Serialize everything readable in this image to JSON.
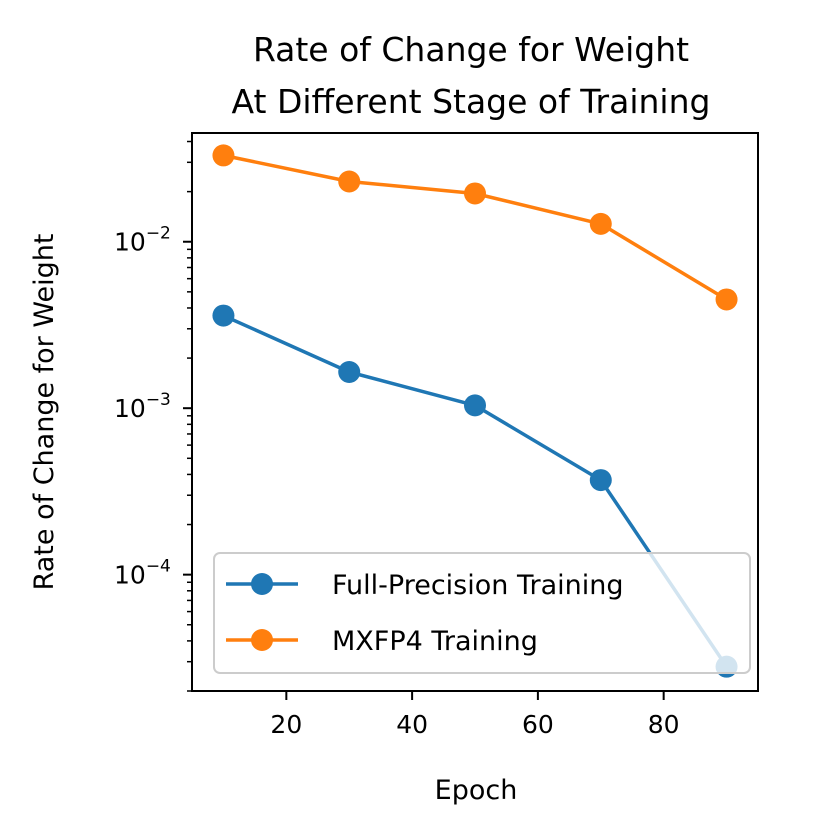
{
  "chart_data": {
    "type": "line",
    "title_lines": [
      "Rate of Change for Weight",
      "At Different Stage of Training"
    ],
    "xlabel": "Epoch",
    "ylabel": "Rate of Change for Weight",
    "yscale": "log",
    "xlim": [
      5,
      95
    ],
    "ylim": [
      2e-05,
      0.045
    ],
    "x_ticks": [
      20,
      40,
      60,
      80
    ],
    "y_ticks": [
      {
        "value": 0.0001,
        "base": "10",
        "exp": "−4"
      },
      {
        "value": 0.001,
        "base": "10",
        "exp": "−3"
      },
      {
        "value": 0.01,
        "base": "10",
        "exp": "−2"
      }
    ],
    "series": [
      {
        "name": "Full-Precision Training",
        "color": "#1f77b4",
        "x": [
          10,
          30,
          50,
          70,
          90
        ],
        "y": [
          0.0036,
          0.00165,
          0.00104,
          0.00037,
          2.8e-05
        ]
      },
      {
        "name": "MXFP4 Training",
        "color": "#ff7f0e",
        "x": [
          10,
          30,
          50,
          70,
          90
        ],
        "y": [
          0.033,
          0.023,
          0.0195,
          0.0128,
          0.0045
        ]
      }
    ],
    "legend_position": "lower-right",
    "grid": false,
    "marker": "circle"
  }
}
